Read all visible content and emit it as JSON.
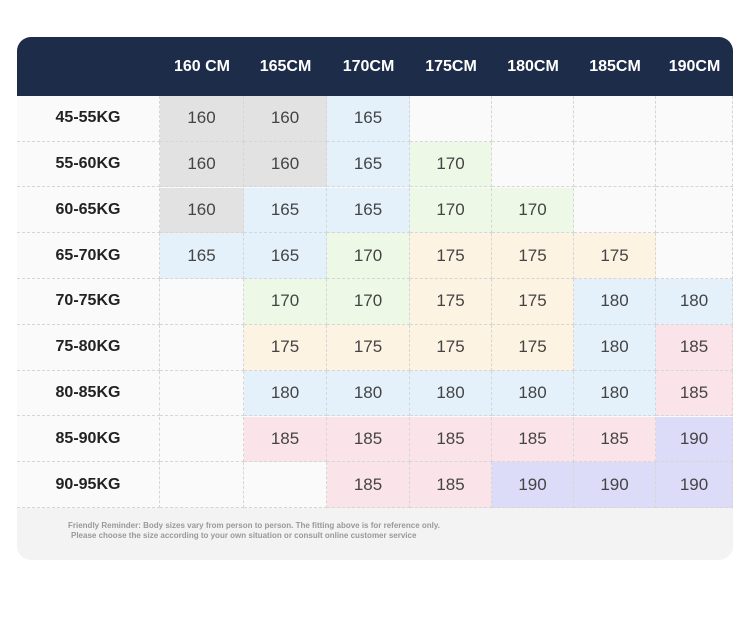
{
  "table": {
    "header": [
      "160 CM",
      "165CM",
      "170CM",
      "175CM",
      "180CM",
      "185CM",
      "190CM"
    ],
    "rows": [
      {
        "label": "45-55KG",
        "cells": [
          {
            "text": "160",
            "color": "#e2e2e2"
          },
          {
            "text": "160",
            "color": "#e2e2e2"
          },
          {
            "text": "165",
            "color": "#e4f1fb"
          },
          null,
          null,
          null,
          null
        ]
      },
      {
        "label": "55-60KG",
        "cells": [
          {
            "text": "160",
            "color": "#e2e2e2"
          },
          {
            "text": "160",
            "color": "#e2e2e2"
          },
          {
            "text": "165",
            "color": "#e4f1fb"
          },
          {
            "text": "170",
            "color": "#eef8e6"
          },
          null,
          null,
          null
        ]
      },
      {
        "label": "60-65KG",
        "cells": [
          {
            "text": "160",
            "color": "#e2e2e2"
          },
          {
            "text": "165",
            "color": "#e4f1fb"
          },
          {
            "text": "165",
            "color": "#e4f1fb"
          },
          {
            "text": "170",
            "color": "#eef8e6"
          },
          {
            "text": "170",
            "color": "#eef8e6"
          },
          null,
          null
        ]
      },
      {
        "label": "65-70KG",
        "cells": [
          {
            "text": "165",
            "color": "#e4f1fb"
          },
          {
            "text": "165",
            "color": "#e4f1fb"
          },
          {
            "text": "170",
            "color": "#eef8e6"
          },
          {
            "text": "175",
            "color": "#fdf3e2"
          },
          {
            "text": "175",
            "color": "#fdf3e2"
          },
          {
            "text": "175",
            "color": "#fdf3e2"
          },
          null
        ]
      },
      {
        "label": "70-75KG",
        "cells": [
          null,
          {
            "text": "170",
            "color": "#eef8e6"
          },
          {
            "text": "170",
            "color": "#eef8e6"
          },
          {
            "text": "175",
            "color": "#fdf3e2"
          },
          {
            "text": "175",
            "color": "#fdf3e2"
          },
          {
            "text": "180",
            "color": "#e4f1fb"
          },
          {
            "text": "180",
            "color": "#e4f1fb"
          }
        ]
      },
      {
        "label": "75-80KG",
        "cells": [
          null,
          {
            "text": "175",
            "color": "#fdf3e2"
          },
          {
            "text": "175",
            "color": "#fdf3e2"
          },
          {
            "text": "175",
            "color": "#fdf3e2"
          },
          {
            "text": "175",
            "color": "#fdf3e2"
          },
          {
            "text": "180",
            "color": "#e4f1fb"
          },
          {
            "text": "185",
            "color": "#fbe4e9"
          }
        ]
      },
      {
        "label": "80-85KG",
        "cells": [
          null,
          {
            "text": "180",
            "color": "#e4f1fb"
          },
          {
            "text": "180",
            "color": "#e4f1fb"
          },
          {
            "text": "180",
            "color": "#e4f1fb"
          },
          {
            "text": "180",
            "color": "#e4f1fb"
          },
          {
            "text": "180",
            "color": "#e4f1fb"
          },
          {
            "text": "185",
            "color": "#fbe4e9"
          }
        ]
      },
      {
        "label": "85-90KG",
        "cells": [
          null,
          {
            "text": "185",
            "color": "#fbe4e9"
          },
          {
            "text": "185",
            "color": "#fbe4e9"
          },
          {
            "text": "185",
            "color": "#fbe4e9"
          },
          {
            "text": "185",
            "color": "#fbe4e9"
          },
          {
            "text": "185",
            "color": "#fbe4e9"
          },
          {
            "text": "190",
            "color": "#dddcf8"
          }
        ]
      },
      {
        "label": "90-95KG",
        "cells": [
          null,
          null,
          {
            "text": "185",
            "color": "#fbe4e9"
          },
          {
            "text": "185",
            "color": "#fbe4e9"
          },
          {
            "text": "190",
            "color": "#dddcf8"
          },
          {
            "text": "190",
            "color": "#dddcf8"
          },
          {
            "text": "190",
            "color": "#dddcf8"
          }
        ]
      }
    ]
  },
  "footnote": [
    "Friendly Reminder: Body sizes vary from person to person. The fitting above is for reference only.",
    "Please choose the size according to your own situation or consult online customer service"
  ]
}
